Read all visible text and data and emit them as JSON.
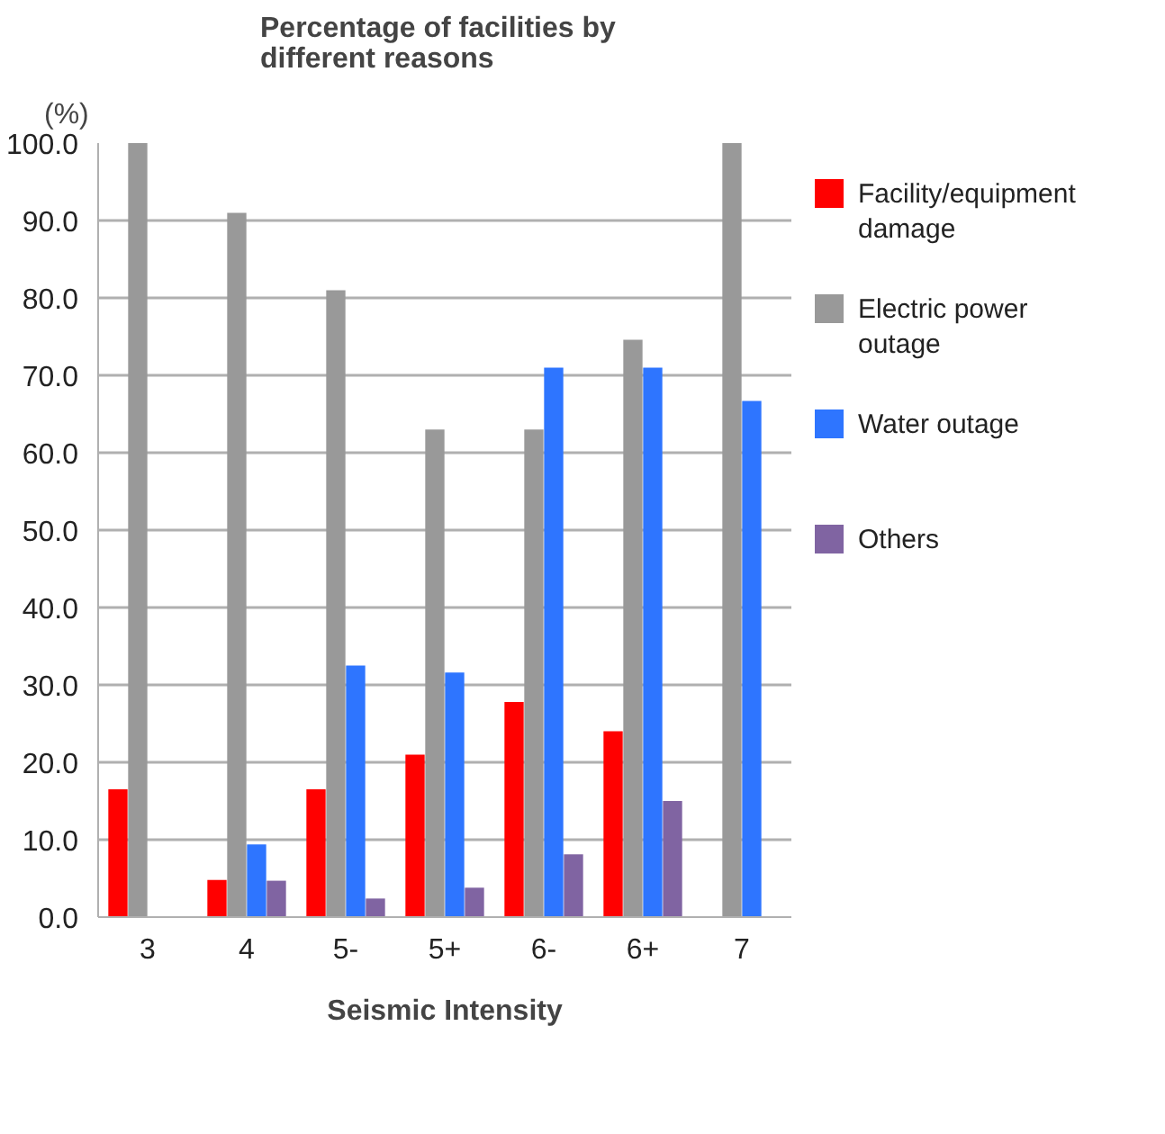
{
  "chart_data": {
    "type": "bar",
    "title": "Percentage of facilities by different reasons",
    "xlabel": "Seismic Intensity",
    "ylabel": "(%)",
    "categories": [
      "3",
      "4",
      "5-",
      "5+",
      "6-",
      "6+",
      "7"
    ],
    "series": [
      {
        "name": "Facility/equipment damage",
        "color": "#ff0000",
        "values": [
          16.5,
          4.8,
          16.5,
          21.0,
          27.8,
          24.0,
          0
        ]
      },
      {
        "name": "Electric power outage",
        "color": "#999999",
        "values": [
          100,
          91.0,
          81.0,
          63.0,
          63.0,
          74.6,
          100
        ]
      },
      {
        "name": "Water outage",
        "color": "#2e75ff",
        "values": [
          0,
          9.4,
          32.5,
          31.6,
          71.0,
          71.0,
          66.7
        ]
      },
      {
        "name": "Others",
        "color": "#8064a2",
        "values": [
          0,
          4.7,
          2.4,
          3.8,
          8.1,
          15.0,
          0
        ]
      }
    ],
    "ylim": [
      0,
      100
    ],
    "yticks": [
      {
        "value": 0,
        "label": "0.0"
      },
      {
        "value": 10,
        "label": "10.0"
      },
      {
        "value": 20,
        "label": "20.0"
      },
      {
        "value": 30,
        "label": "30.0"
      },
      {
        "value": 40,
        "label": "40.0"
      },
      {
        "value": 50,
        "label": "50.0"
      },
      {
        "value": 60,
        "label": "60.0"
      },
      {
        "value": 70,
        "label": "70.0"
      },
      {
        "value": 80,
        "label": "80.0"
      },
      {
        "value": 90,
        "label": "90.0"
      },
      {
        "value": 100,
        "label": "100.0"
      }
    ],
    "grid": "y",
    "legend": "right"
  }
}
